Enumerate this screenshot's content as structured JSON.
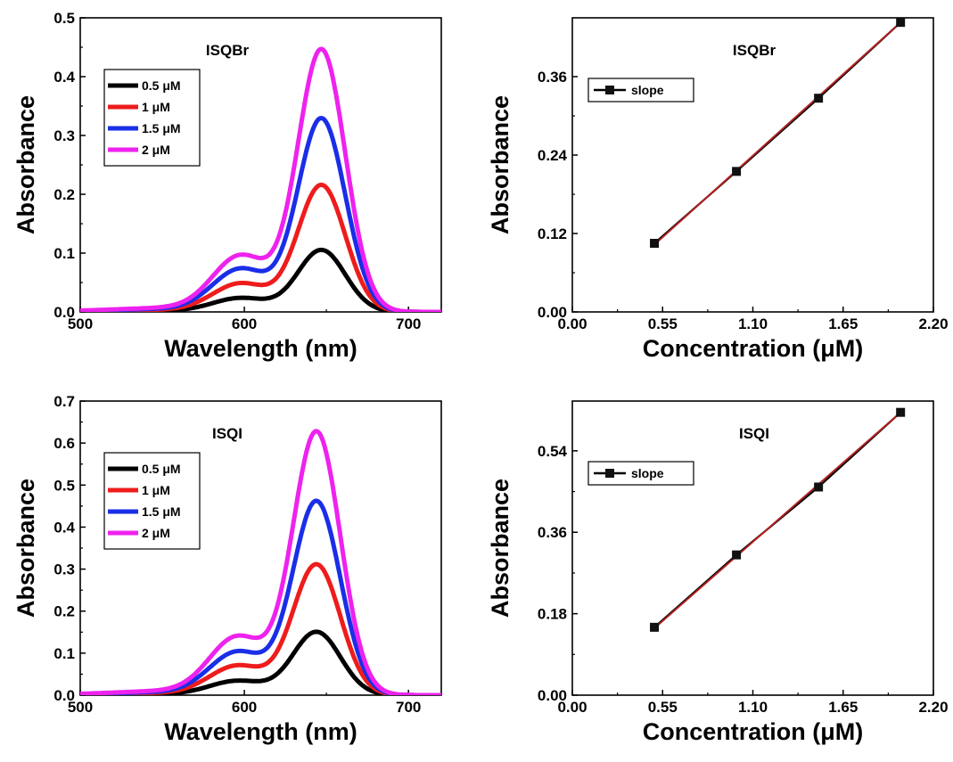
{
  "colors": {
    "c05": "#000000",
    "c1": "#ee1c1c",
    "c15": "#1a2ee8",
    "c2": "#ee22ee",
    "fit": "#b22222"
  },
  "chart_data": [
    {
      "id": "p-spec-br",
      "type": "line",
      "title": "ISQBr",
      "xlabel": "Wavelength (nm)",
      "ylabel": "Absorbance",
      "xlim": [
        500,
        720
      ],
      "ylim": [
        0,
        0.5
      ],
      "xticks": [
        500,
        600,
        700
      ],
      "yticks": [
        0.0,
        0.1,
        0.2,
        0.3,
        0.4,
        0.5
      ],
      "yfmt": 1,
      "legend_position": "top-left",
      "series": [
        {
          "name": "0.5 μM",
          "color": "#000000",
          "peak": 0.105,
          "shoulder": 0.023
        },
        {
          "name": "1 μM",
          "color": "#ee1c1c",
          "peak": 0.215,
          "shoulder": 0.047
        },
        {
          "name": "1.5 μM",
          "color": "#1a2ee8",
          "peak": 0.328,
          "shoulder": 0.071
        },
        {
          "name": "2 μM",
          "color": "#ee22ee",
          "peak": 0.445,
          "shoulder": 0.093
        }
      ],
      "peak_nm": 647,
      "shoulder_nm": 598
    },
    {
      "id": "p-lin-br",
      "type": "scatter",
      "title": "ISQBr",
      "xlabel": "Concentration (μM)",
      "ylabel": "Absorbance",
      "xlim": [
        0,
        2.2
      ],
      "ylim": [
        0,
        0.45
      ],
      "xticks": [
        0.0,
        0.55,
        1.1,
        1.65,
        2.2
      ],
      "yticks": [
        0.0,
        0.12,
        0.24,
        0.36
      ],
      "xfmt": 2,
      "yfmt": 2,
      "legend_position": "top-left",
      "series": [
        {
          "name": "slope",
          "x": [
            0.5,
            1.0,
            1.5,
            2.0
          ],
          "y": [
            0.105,
            0.215,
            0.327,
            0.443
          ]
        }
      ],
      "fit": {
        "x": [
          0.5,
          2.0
        ],
        "y": [
          0.103,
          0.443
        ]
      }
    },
    {
      "id": "p-spec-i",
      "type": "line",
      "title": "ISQI",
      "xlabel": "Wavelength (nm)",
      "ylabel": "Absorbance",
      "xlim": [
        500,
        720
      ],
      "ylim": [
        0,
        0.7
      ],
      "xticks": [
        500,
        600,
        700
      ],
      "yticks": [
        0.0,
        0.1,
        0.2,
        0.3,
        0.4,
        0.5,
        0.6,
        0.7
      ],
      "yfmt": 1,
      "legend_position": "top-left",
      "series": [
        {
          "name": "0.5 μM",
          "color": "#000000",
          "peak": 0.15,
          "shoulder": 0.033
        },
        {
          "name": "1 μM",
          "color": "#ee1c1c",
          "peak": 0.31,
          "shoulder": 0.068
        },
        {
          "name": "1.5 μM",
          "color": "#1a2ee8",
          "peak": 0.46,
          "shoulder": 0.1
        },
        {
          "name": "2 μM",
          "color": "#ee22ee",
          "peak": 0.625,
          "shoulder": 0.135
        }
      ],
      "peak_nm": 644,
      "shoulder_nm": 596
    },
    {
      "id": "p-lin-i",
      "type": "scatter",
      "title": "ISQI",
      "xlabel": "Concentration (μM)",
      "ylabel": "Absorbance",
      "xlim": [
        0,
        2.2
      ],
      "ylim": [
        0,
        0.65
      ],
      "xticks": [
        0.0,
        0.55,
        1.1,
        1.65,
        2.2
      ],
      "yticks": [
        0.0,
        0.18,
        0.36,
        0.54
      ],
      "xfmt": 2,
      "yfmt": 2,
      "legend_position": "top-left",
      "series": [
        {
          "name": "slope",
          "x": [
            0.5,
            1.0,
            1.5,
            2.0
          ],
          "y": [
            0.15,
            0.31,
            0.46,
            0.625
          ]
        }
      ],
      "fit": {
        "x": [
          0.5,
          2.0
        ],
        "y": [
          0.148,
          0.625
        ]
      }
    }
  ]
}
